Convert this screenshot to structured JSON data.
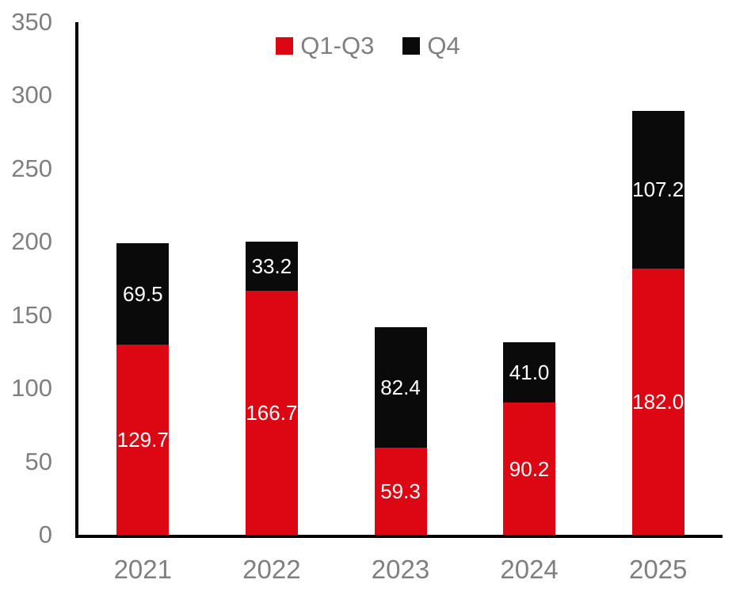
{
  "chart_data": {
    "type": "bar",
    "stacked": true,
    "title": "",
    "xlabel": "",
    "ylabel": "",
    "categories": [
      "2021",
      "2022",
      "2023",
      "2024",
      "2025"
    ],
    "series": [
      {
        "name": "Q1-Q3",
        "color": "#DC0713",
        "values": [
          129.7,
          166.7,
          59.3,
          90.2,
          182.0
        ]
      },
      {
        "name": "Q4",
        "color": "#0A0A0A",
        "values": [
          69.5,
          33.2,
          82.4,
          41.0,
          107.2
        ]
      }
    ],
    "totals": [
      199.2,
      199.9,
      141.7,
      131.2,
      289.2
    ],
    "ylim": [
      0,
      350
    ],
    "yticks": [
      0,
      50,
      100,
      150,
      200,
      250,
      300,
      350
    ],
    "grid": false,
    "legend_position": "top-center",
    "data_label_color": "#FFFFFF",
    "axis_text_color": "#7F7F7F",
    "axis_line_color": "#000000",
    "background_color": "#FFFFFF"
  }
}
